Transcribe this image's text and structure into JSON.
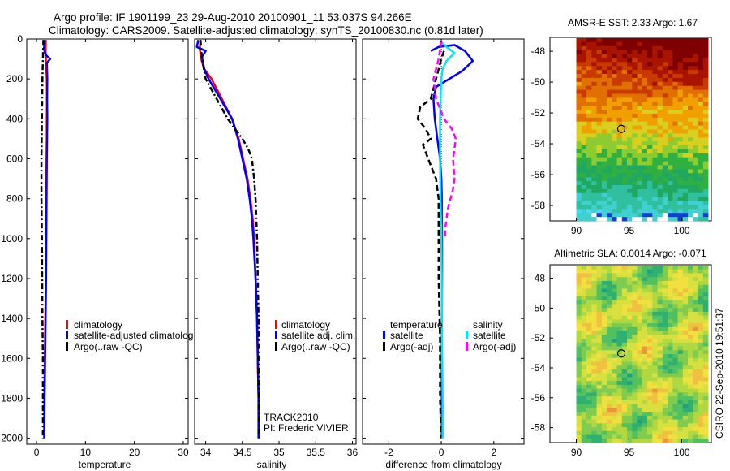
{
  "figure": {
    "title_line1": "Argo profile: IF 1901199_23 29-Aug-2010 20100901_11 53.037S 94.266E",
    "title_line2": "Climatology: CARS2009. Satellite-adjusted climatology: synTS_20100830.nc (0.81d later)",
    "side_label": "CSIRO 22-Sep-2010 19:51:37",
    "annotation_line1": "TRACK2010",
    "annotation_line2": "PI: Frederic VIVIER"
  },
  "colors": {
    "climatology": "#ff0000",
    "satellite": "#0000ff",
    "argo": "#000000",
    "salinity_satellite": "#00e5ee",
    "salinity_argo": "#ff00ff"
  },
  "chart_data": [
    {
      "type": "line",
      "panel": "temperature",
      "xlabel": "temperature",
      "xlim": [
        -2,
        31
      ],
      "ylim": [
        0,
        2030
      ],
      "y_reversed": true,
      "xticks": [
        0,
        10,
        20,
        30
      ],
      "yticks": [
        0,
        200,
        400,
        600,
        800,
        1000,
        1200,
        1400,
        1600,
        1800,
        2000
      ],
      "legend_entries": [
        "climatology",
        "satellite-adjusted climatolog",
        "Argo(..raw -QC)"
      ],
      "series": [
        {
          "name": "climatology",
          "style": "solid",
          "color": "#ff0000",
          "x": [
            1.9,
            1.85,
            1.9,
            2.0,
            2.1,
            2.15,
            2.1,
            2.1,
            2.05,
            2.0,
            1.95,
            1.9,
            1.85,
            1.8,
            1.75,
            1.7,
            1.65,
            1.6,
            1.55
          ],
          "y": [
            5,
            50,
            100,
            150,
            200,
            300,
            400,
            500,
            600,
            800,
            1000,
            1200,
            1300,
            1400,
            1500,
            1600,
            1700,
            1800,
            2000
          ]
        },
        {
          "name": "satellite-adjusted climatolog",
          "style": "solid",
          "color": "#0000ff",
          "x": [
            1.7,
            1.5,
            1.9,
            2.8,
            2.1,
            2.2,
            2.15,
            2.2,
            2.15,
            2.1,
            2.05,
            2.0,
            1.95,
            1.9,
            1.85,
            1.8,
            1.75,
            1.7,
            1.65,
            1.6
          ],
          "y": [
            5,
            50,
            80,
            100,
            120,
            200,
            300,
            400,
            500,
            600,
            800,
            1000,
            1200,
            1300,
            1400,
            1500,
            1600,
            1700,
            1800,
            2000
          ]
        },
        {
          "name": "Argo(..raw -QC)",
          "style": "dashdot",
          "color": "#000000",
          "x": [
            1.4,
            1.3,
            1.2,
            1.15,
            1.1,
            1.05,
            1.0,
            1.0,
            1.05,
            1.1,
            1.15,
            1.2,
            1.25,
            1.3,
            1.3,
            1.3,
            1.3
          ],
          "y": [
            5,
            100,
            200,
            300,
            400,
            500,
            600,
            800,
            900,
            1000,
            1200,
            1400,
            1500,
            1600,
            1700,
            1800,
            2000
          ]
        }
      ]
    },
    {
      "type": "line",
      "panel": "salinity",
      "xlabel": "salinity",
      "xlim": [
        33.85,
        36.05
      ],
      "ylim": [
        0,
        2030
      ],
      "y_reversed": true,
      "xticks": [
        34,
        34.5,
        35,
        35.5,
        36
      ],
      "xticklabels": [
        "34",
        "34.5",
        "35",
        "35.5",
        "36"
      ],
      "legend_entries": [
        "climatology",
        "satellite adj. clim.",
        "Argo(..raw -QC)"
      ],
      "series": [
        {
          "name": "climatology",
          "style": "solid",
          "color": "#ff0000",
          "x": [
            33.93,
            33.92,
            33.94,
            33.98,
            34.08,
            34.22,
            34.36,
            34.45,
            34.51,
            34.57,
            34.61,
            34.64,
            34.66,
            34.68,
            34.7,
            34.71,
            34.72,
            34.72
          ],
          "y": [
            5,
            50,
            100,
            150,
            200,
            300,
            400,
            500,
            600,
            700,
            800,
            900,
            1000,
            1200,
            1400,
            1600,
            1800,
            2000
          ]
        },
        {
          "name": "satellite adj. clim.",
          "style": "solid",
          "color": "#0000ff",
          "x": [
            33.9,
            33.88,
            34.0,
            33.95,
            33.98,
            34.04,
            34.2,
            34.36,
            34.44,
            34.5,
            34.56,
            34.6,
            34.63,
            34.65,
            34.68,
            34.7,
            34.71,
            34.72,
            34.72
          ],
          "y": [
            5,
            40,
            60,
            90,
            150,
            200,
            300,
            400,
            500,
            600,
            700,
            800,
            900,
            1000,
            1200,
            1400,
            1600,
            1800,
            2000
          ]
        },
        {
          "name": "Argo(..raw -QC)",
          "style": "dashdot",
          "color": "#000000",
          "x": [
            33.93,
            33.95,
            34.0,
            34.15,
            34.3,
            34.4,
            34.5,
            34.58,
            34.63,
            34.66,
            34.68,
            34.7,
            34.71,
            34.72,
            34.72,
            34.73
          ],
          "y": [
            5,
            100,
            200,
            300,
            400,
            450,
            500,
            550,
            600,
            700,
            800,
            1000,
            1200,
            1400,
            1600,
            2000
          ]
        }
      ]
    },
    {
      "type": "line",
      "panel": "difference",
      "xlabel": "difference from climatology",
      "xlim": [
        -3,
        3.15
      ],
      "ylim": [
        0,
        2030
      ],
      "y_reversed": true,
      "xticks": [
        -2,
        0,
        2
      ],
      "zero_line": true,
      "legend_entries": {
        "temperature": [
          "satellite",
          "Argo(-adj)"
        ],
        "salinity": [
          "satellite",
          "Argo(-adj)"
        ]
      },
      "legend_headers": [
        "temperature",
        "salinity"
      ],
      "series": [
        {
          "name": "satellite",
          "group": "temperature",
          "style": "solid",
          "color": "#0000ff",
          "x": [
            -0.4,
            -0.1,
            0.5,
            0.9,
            1.2,
            0.8,
            0.3,
            -0.2,
            -0.3,
            -0.25,
            -0.15,
            -0.05,
            0.0,
            0.02,
            0.03,
            0.03,
            0.02,
            0.02,
            0.02
          ],
          "y": [
            60,
            40,
            30,
            60,
            110,
            160,
            200,
            240,
            300,
            400,
            500,
            600,
            700,
            800,
            1000,
            1200,
            1500,
            1800,
            2000
          ]
        },
        {
          "name": "Argo(-adj)",
          "group": "temperature",
          "style": "dashed",
          "color": "#000000",
          "x": [
            0.1,
            0.0,
            -0.2,
            -0.4,
            -0.8,
            -0.9,
            -0.6,
            -0.4,
            -0.7,
            -0.5,
            -0.2,
            -0.1,
            -0.1,
            -0.1,
            -0.05,
            -0.05,
            0.0
          ],
          "y": [
            60,
            100,
            200,
            300,
            340,
            400,
            450,
            500,
            530,
            600,
            700,
            800,
            1000,
            1200,
            1500,
            1800,
            2000
          ]
        },
        {
          "name": "satellite",
          "group": "salinity",
          "style": "solid",
          "color": "#00e5ee",
          "x": [
            -0.05,
            0.2,
            0.5,
            0.2,
            0.05,
            0.0,
            -0.03,
            -0.05,
            -0.05,
            -0.03,
            0.0,
            0.02,
            0.03,
            0.05,
            0.05
          ],
          "y": [
            10,
            40,
            70,
            110,
            150,
            200,
            300,
            400,
            600,
            800,
            1000,
            1200,
            1500,
            1800,
            2000
          ]
        },
        {
          "name": "Argo(-adj)",
          "group": "salinity",
          "style": "dashed",
          "color": "#ff00ff",
          "x": [
            0.0,
            -0.1,
            -0.3,
            -0.2,
            0.1,
            0.4,
            0.55,
            0.45,
            0.5,
            0.45,
            0.35,
            0.25,
            0.2,
            0.15,
            0.15
          ],
          "y": [
            10,
            100,
            200,
            300,
            400,
            450,
            500,
            600,
            700,
            750,
            800,
            850,
            900,
            950,
            1000
          ]
        }
      ]
    },
    {
      "type": "heatmap",
      "panel": "sst_map",
      "title": "AMSR-E SST: 2.33 Argo: 1.67",
      "xlim": [
        87.5,
        102.8
      ],
      "ylim": [
        -59,
        -47.1
      ],
      "xticks": [
        90,
        95,
        100
      ],
      "yticks": [
        -48,
        -50,
        -52,
        -54,
        -56,
        -58
      ],
      "marker": {
        "lon": 94.266,
        "lat": -53.037
      }
    },
    {
      "type": "heatmap",
      "panel": "sla_map",
      "title": "Altimetric SLA: 0.0014 Argo: -0.071",
      "xlim": [
        87.5,
        102.8
      ],
      "ylim": [
        -59,
        -47.1
      ],
      "xticks": [
        90,
        95,
        100
      ],
      "yticks": [
        -48,
        -50,
        -52,
        -54,
        -56,
        -58
      ],
      "marker": {
        "lon": 94.266,
        "lat": -53.037
      }
    }
  ]
}
